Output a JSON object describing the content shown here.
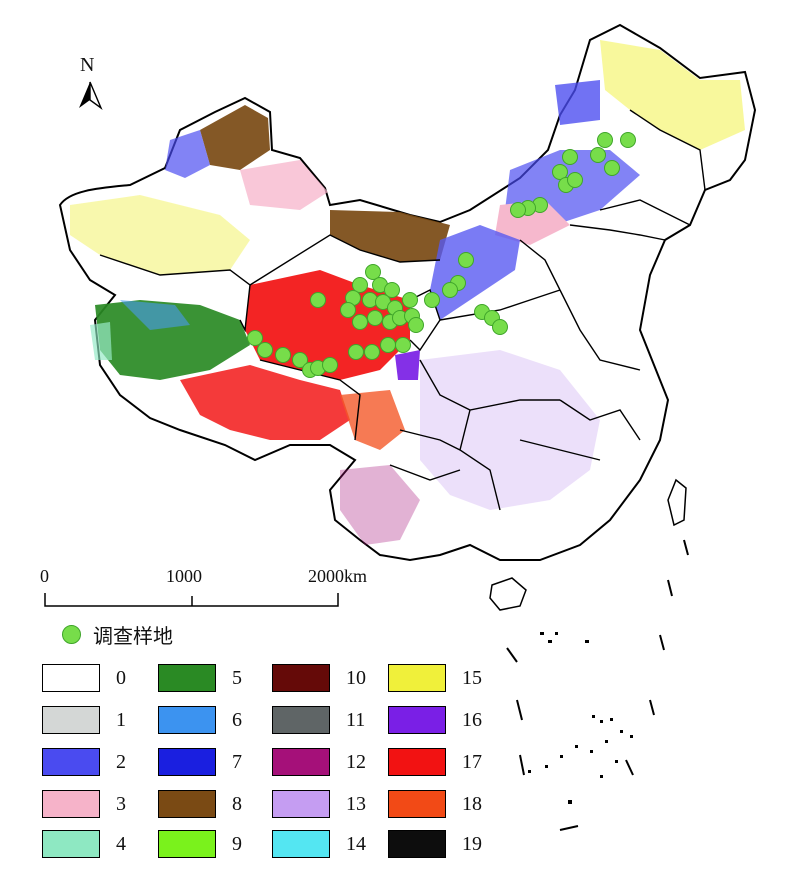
{
  "north_arrow": {
    "label": "N"
  },
  "scale_bar": {
    "ticks": [
      "0",
      "1000",
      "2000km"
    ]
  },
  "survey_legend": {
    "label": "调查样地",
    "color": "#77dd4a"
  },
  "legend": [
    {
      "label": "0",
      "color": "#ffffff"
    },
    {
      "label": "1",
      "color": "#d4d7d6"
    },
    {
      "label": "2",
      "color": "#4a4bf0"
    },
    {
      "label": "3",
      "color": "#f6b3c9"
    },
    {
      "label": "4",
      "color": "#8ee8c2"
    },
    {
      "label": "5",
      "color": "#2a8a24"
    },
    {
      "label": "6",
      "color": "#3c93f0"
    },
    {
      "label": "7",
      "color": "#1a1fe0"
    },
    {
      "label": "8",
      "color": "#7a4a14"
    },
    {
      "label": "9",
      "color": "#7af21c"
    },
    {
      "label": "10",
      "color": "#650a08"
    },
    {
      "label": "11",
      "color": "#5f6566"
    },
    {
      "label": "12",
      "color": "#a51079"
    },
    {
      "label": "13",
      "color": "#c59df2"
    },
    {
      "label": "14",
      "color": "#54e6f2"
    },
    {
      "label": "15",
      "color": "#f0f03a"
    },
    {
      "label": "16",
      "color": "#7a1fe6"
    },
    {
      "label": "17",
      "color": "#f21212"
    },
    {
      "label": "18",
      "color": "#f24a16"
    },
    {
      "label": "19",
      "color": "#0d0d0d"
    }
  ]
}
